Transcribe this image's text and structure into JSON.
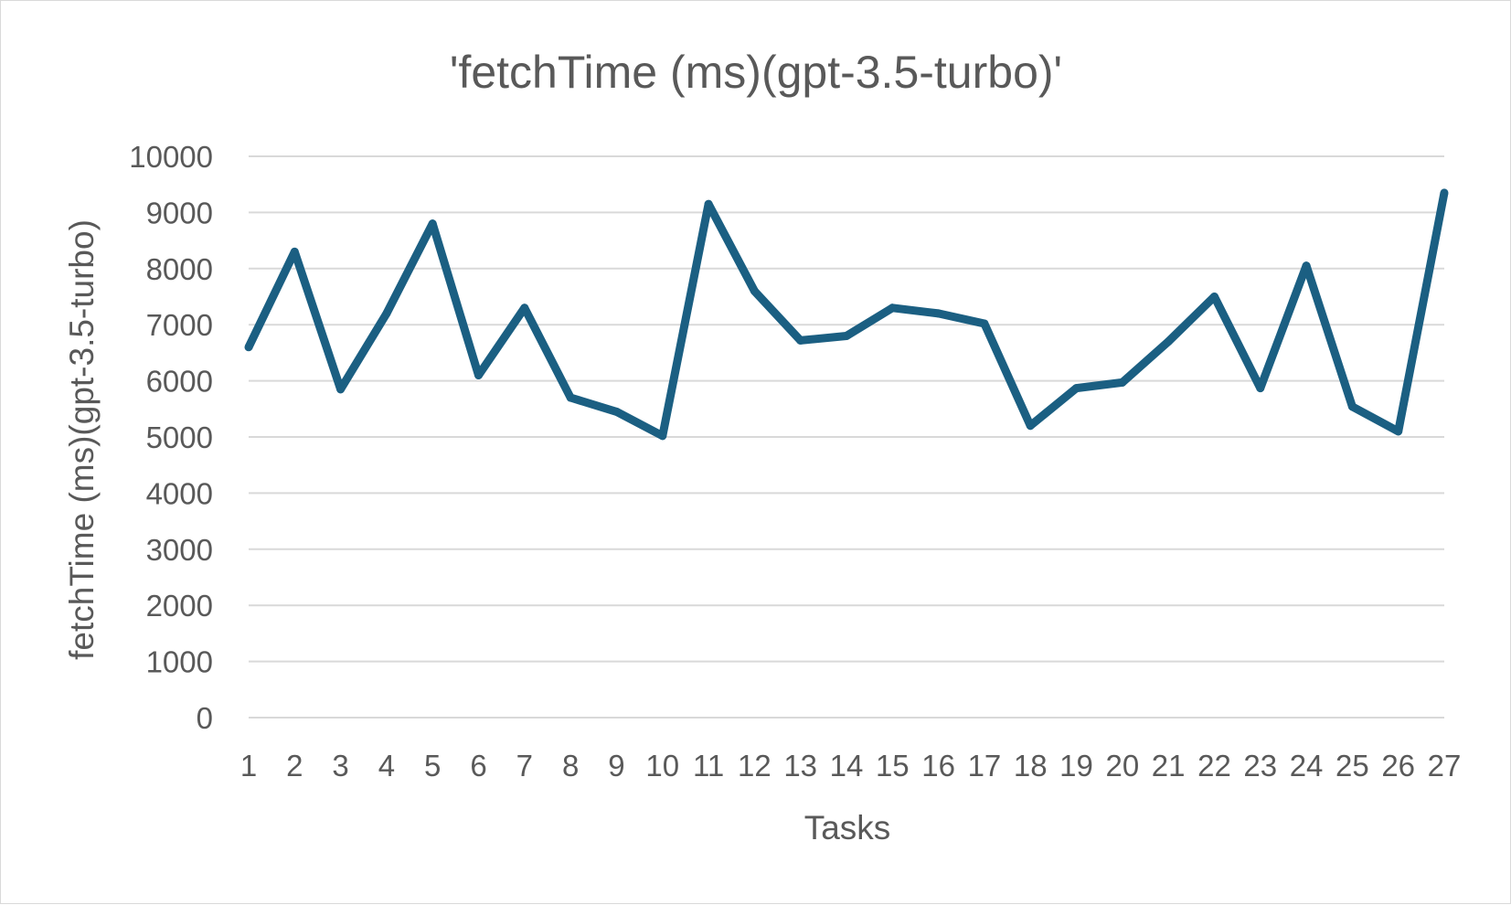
{
  "chart_data": {
    "type": "line",
    "title": "'fetchTime (ms)(gpt-3.5-turbo)'",
    "xlabel": "Tasks",
    "ylabel": "fetchTime (ms)(gpt-3.5-turbo)",
    "ylim": [
      0,
      10000
    ],
    "y_ticks": [
      "0",
      "1000",
      "2000",
      "3000",
      "4000",
      "5000",
      "6000",
      "7000",
      "8000",
      "9000",
      "10000"
    ],
    "categories": [
      "1",
      "2",
      "3",
      "4",
      "5",
      "6",
      "7",
      "8",
      "9",
      "10",
      "11",
      "12",
      "13",
      "14",
      "15",
      "16",
      "17",
      "18",
      "19",
      "20",
      "21",
      "22",
      "23",
      "24",
      "25",
      "26",
      "27"
    ],
    "series": [
      {
        "color": "#1b5f82",
        "values": [
          6600,
          8300,
          5850,
          7200,
          8800,
          6100,
          7300,
          5700,
          5450,
          5020,
          9150,
          7600,
          6720,
          6800,
          7300,
          7200,
          7020,
          5200,
          5870,
          5970,
          6700,
          7500,
          5870,
          8050,
          5540,
          5100,
          9350
        ]
      }
    ],
    "grid": true,
    "legend": "none"
  }
}
